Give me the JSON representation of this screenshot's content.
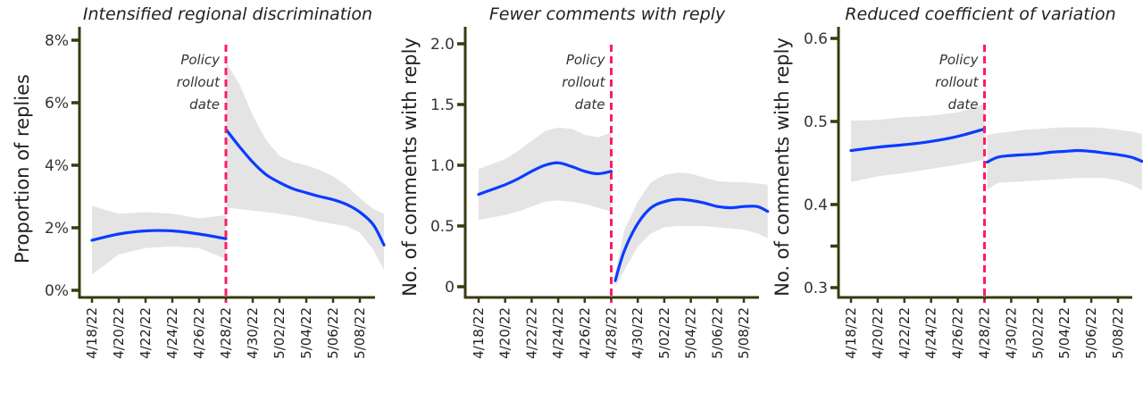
{
  "chart_data": [
    {
      "type": "line",
      "title": "Intensified regional discrimination",
      "xlabel": "",
      "ylabel": "Proportion of replies",
      "ylim": [
        0,
        8
      ],
      "yticks": [
        "0%",
        "2%",
        "4%",
        "6%",
        "8%"
      ],
      "ytick_values": [
        0,
        2,
        4,
        6,
        8
      ],
      "xticks": [
        "4/18/22",
        "4/20/22",
        "4/22/22",
        "4/24/22",
        "4/26/22",
        "4/28/22",
        "4/30/22",
        "5/02/22",
        "5/04/22",
        "5/06/22",
        "5/08/22"
      ],
      "annotation": [
        "Policy",
        "rollout",
        "date"
      ],
      "policy_date_index": 10,
      "segments": [
        {
          "name": "pre-policy",
          "x": [
            0,
            2,
            4,
            6,
            8,
            10
          ],
          "values": [
            1.6,
            1.8,
            1.9,
            1.9,
            1.8,
            1.65
          ],
          "lower": [
            0.5,
            1.15,
            1.35,
            1.4,
            1.35,
            1.0
          ],
          "upper": [
            2.7,
            2.45,
            2.5,
            2.45,
            2.3,
            2.4
          ]
        },
        {
          "name": "post-policy",
          "x": [
            10,
            11,
            12,
            13,
            14,
            15,
            16,
            17,
            18,
            19,
            20,
            21,
            21.8
          ],
          "values": [
            5.15,
            4.6,
            4.1,
            3.7,
            3.45,
            3.25,
            3.12,
            3.0,
            2.9,
            2.75,
            2.5,
            2.1,
            1.45
          ],
          "lower": [
            2.65,
            2.6,
            2.55,
            2.5,
            2.45,
            2.38,
            2.3,
            2.2,
            2.12,
            2.05,
            1.85,
            1.3,
            0.65
          ],
          "upper": [
            7.3,
            6.6,
            5.6,
            4.8,
            4.3,
            4.1,
            4.0,
            3.85,
            3.65,
            3.35,
            2.95,
            2.6,
            2.45
          ]
        }
      ],
      "legend": null,
      "grid": false
    },
    {
      "type": "line",
      "title": "Fewer comments with reply",
      "xlabel": "",
      "ylabel": "No. of comments with reply",
      "ylim": [
        0,
        2.0
      ],
      "yticks": [
        "0",
        "0.5",
        "1.0",
        "1.5",
        "2.0"
      ],
      "ytick_values": [
        0,
        0.5,
        1.0,
        1.5,
        2.0
      ],
      "xticks": [
        "4/18/22",
        "4/20/22",
        "4/22/22",
        "4/24/22",
        "4/26/22",
        "4/28/22",
        "4/30/22",
        "5/02/22",
        "5/04/22",
        "5/06/22",
        "5/08/22"
      ],
      "annotation": [
        "Policy",
        "rollout",
        "date"
      ],
      "policy_date_index": 10,
      "segments": [
        {
          "name": "pre-policy",
          "x": [
            0,
            1,
            2,
            3,
            4,
            5,
            6,
            7,
            8,
            9,
            10
          ],
          "values": [
            0.76,
            0.8,
            0.84,
            0.89,
            0.95,
            1.0,
            1.02,
            0.99,
            0.95,
            0.93,
            0.95
          ],
          "lower": [
            0.55,
            0.57,
            0.59,
            0.62,
            0.66,
            0.7,
            0.71,
            0.7,
            0.68,
            0.65,
            0.62
          ],
          "upper": [
            0.97,
            1.01,
            1.05,
            1.12,
            1.2,
            1.28,
            1.31,
            1.3,
            1.25,
            1.23,
            1.27
          ],
          "note": "upper values ~1.31 peak near 4/24"
        },
        {
          "name": "post-policy",
          "x": [
            10.3,
            11,
            12,
            13,
            14,
            15,
            16,
            17,
            18,
            19,
            20,
            21,
            21.8
          ],
          "values": [
            0.05,
            0.3,
            0.52,
            0.65,
            0.7,
            0.72,
            0.71,
            0.69,
            0.66,
            0.65,
            0.66,
            0.66,
            0.62
          ],
          "lower": [
            0.0,
            0.14,
            0.33,
            0.44,
            0.49,
            0.5,
            0.5,
            0.5,
            0.49,
            0.48,
            0.47,
            0.44,
            0.4
          ],
          "upper": [
            0.12,
            0.47,
            0.7,
            0.86,
            0.92,
            0.94,
            0.93,
            0.9,
            0.87,
            0.86,
            0.86,
            0.85,
            0.84
          ]
        }
      ],
      "legend": null,
      "grid": false
    },
    {
      "type": "line",
      "title": "Reduced coefficient of variation",
      "xlabel": "",
      "ylabel": "No. of comments with reply",
      "ylim": [
        0.3,
        0.6
      ],
      "yticks": [
        "0.3",
        "",
        "0.4",
        "0.5",
        "0.6"
      ],
      "ytick_values": [
        0.3,
        0.35,
        0.4,
        0.5,
        0.6
      ],
      "xticks": [
        "4/18/22",
        "4/20/22",
        "4/22/22",
        "4/24/22",
        "4/26/22",
        "4/28/22",
        "4/30/22",
        "5/02/22",
        "5/04/22",
        "5/06/22",
        "5/08/22"
      ],
      "annotation": [
        "Policy",
        "rollout",
        "date"
      ],
      "policy_date_index": 10,
      "segments": [
        {
          "name": "pre-policy",
          "x": [
            0,
            2,
            4,
            6,
            8,
            10
          ],
          "values": [
            0.465,
            0.469,
            0.472,
            0.476,
            0.482,
            0.491
          ],
          "lower": [
            0.427,
            0.434,
            0.438,
            0.443,
            0.448,
            0.454
          ],
          "upper": [
            0.501,
            0.502,
            0.505,
            0.507,
            0.511,
            0.521
          ]
        },
        {
          "name": "post-policy",
          "x": [
            10.2,
            11,
            12,
            13,
            14,
            15,
            16,
            17,
            18,
            19,
            20,
            21,
            21.8
          ],
          "values": [
            0.451,
            0.457,
            0.459,
            0.46,
            0.461,
            0.463,
            0.464,
            0.465,
            0.464,
            0.462,
            0.46,
            0.457,
            0.452
          ],
          "lower": [
            0.418,
            0.426,
            0.427,
            0.428,
            0.429,
            0.43,
            0.431,
            0.432,
            0.432,
            0.432,
            0.429,
            0.424,
            0.417
          ],
          "upper": [
            0.484,
            0.486,
            0.488,
            0.49,
            0.491,
            0.492,
            0.493,
            0.493,
            0.493,
            0.492,
            0.49,
            0.488,
            0.485
          ]
        }
      ],
      "legend": null,
      "grid": false
    }
  ],
  "colors": {
    "line": "#0a3cff",
    "band": "#e4e4e4",
    "policy_line": "#ff1a66",
    "axis": "#3a3a10"
  }
}
